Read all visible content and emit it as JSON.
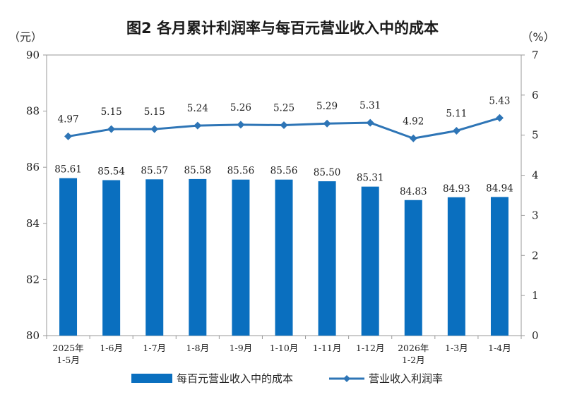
{
  "chart_data": {
    "type": "bar+line",
    "title": "图2  各月累计利润率与每百元营业收入中的成本",
    "y_left_unit": "（元）",
    "y_right_unit": "（%）",
    "ylim_left": [
      80,
      90
    ],
    "ylim_right": [
      0,
      7
    ],
    "yticks_left": [
      "80",
      "82",
      "84",
      "86",
      "88",
      "90"
    ],
    "yticks_right": [
      "0",
      "1",
      "2",
      "3",
      "4",
      "5",
      "6",
      "7"
    ],
    "categories": [
      [
        "2025年",
        "1-5月"
      ],
      [
        "1-6月"
      ],
      [
        "1-7月"
      ],
      [
        "1-8月"
      ],
      [
        "1-9月"
      ],
      [
        "1-10月"
      ],
      [
        "1-11月"
      ],
      [
        "1-12月"
      ],
      [
        "2026年",
        "1-2月"
      ],
      [
        "1-3月"
      ],
      [
        "1-4月"
      ]
    ],
    "series": [
      {
        "name": "每百元营业收入中的成本",
        "kind": "bar",
        "axis": "left",
        "color": "#0a6fbf",
        "values": [
          85.61,
          85.54,
          85.57,
          85.58,
          85.56,
          85.56,
          85.5,
          85.31,
          84.83,
          84.93,
          84.94
        ],
        "labels": [
          "85.61",
          "85.54",
          "85.57",
          "85.58",
          "85.56",
          "85.56",
          "85.50",
          "85.31",
          "84.83",
          "84.93",
          "84.94"
        ]
      },
      {
        "name": "营业收入利润率",
        "kind": "line",
        "marker": "diamond",
        "axis": "right",
        "color": "#2e75b6",
        "values": [
          4.97,
          5.15,
          5.15,
          5.24,
          5.26,
          5.25,
          5.29,
          5.31,
          4.92,
          5.11,
          5.43
        ],
        "labels": [
          "4.97",
          "5.15",
          "5.15",
          "5.24",
          "5.26",
          "5.25",
          "5.29",
          "5.31",
          "4.92",
          "5.11",
          "5.43"
        ]
      }
    ],
    "legend_placement": "bottom-center",
    "grid": false
  }
}
